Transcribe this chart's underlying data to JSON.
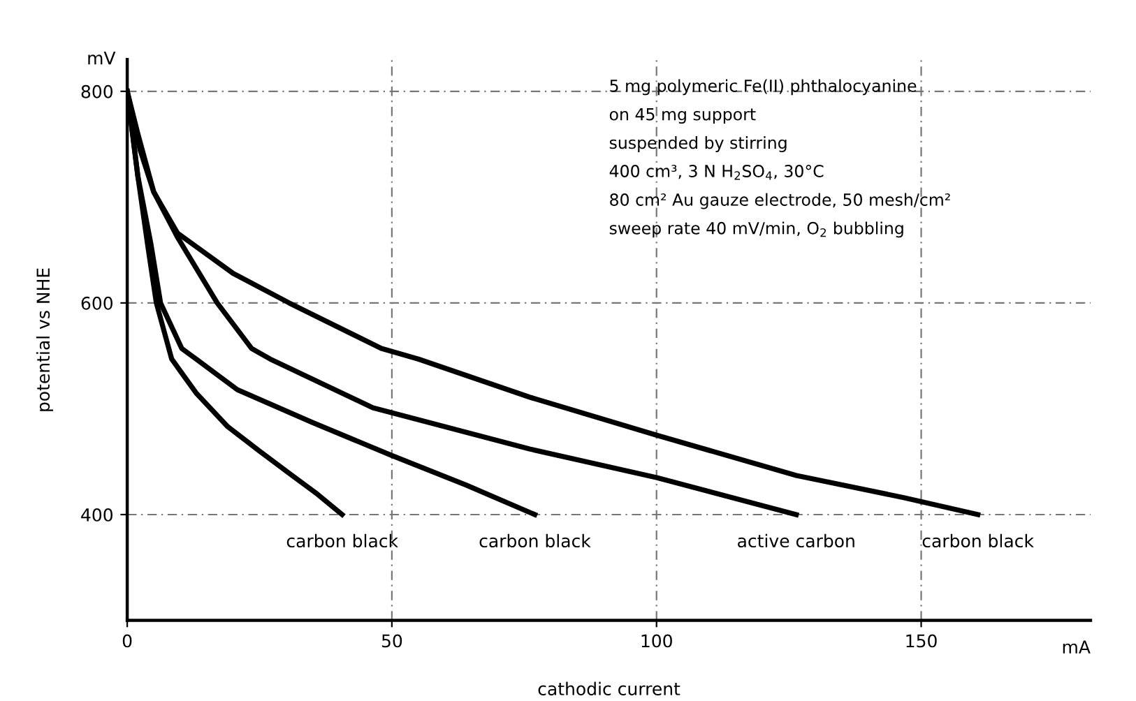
{
  "chart_data": {
    "type": "line",
    "xlabel": "cathodic current",
    "ylabel": "potential vs NHE",
    "xlim": [
      0,
      182
    ],
    "ylim": [
      300,
      830
    ],
    "xticks": [
      0,
      50,
      100,
      150
    ],
    "yticks": [
      400,
      600,
      800
    ],
    "grid": true,
    "marker": "none",
    "line_style": "solid",
    "series": [
      {
        "name": "carbon black",
        "color": "#000000",
        "x": [
          0,
          2,
          4,
          5.5,
          8.4,
          13,
          19,
          25,
          30.6,
          36,
          40.6
        ],
        "values": [
          800,
          720,
          650,
          600,
          547,
          515,
          483,
          460,
          439,
          419,
          400
        ]
      },
      {
        "name": "carbon black",
        "color": "#000000",
        "x": [
          0,
          2,
          4.5,
          6.3,
          10.3,
          13,
          20.8,
          35,
          49.9,
          64,
          77
        ],
        "values": [
          800,
          720,
          655,
          600,
          557,
          547,
          518,
          487,
          456,
          428,
          400
        ]
      },
      {
        "name": "active carbon",
        "color": "#000000",
        "x": [
          0,
          2,
          5,
          9.5,
          17,
          23.5,
          27,
          46.4,
          76,
          100,
          126.4
        ],
        "values": [
          800,
          760,
          705,
          662,
          600,
          557,
          547,
          501,
          462,
          435,
          400
        ]
      },
      {
        "name": "carbon black",
        "color": "#000000",
        "x": [
          0,
          2.4,
          5,
          9.5,
          20,
          30.6,
          48,
          55,
          76,
          100,
          126.4,
          146.7,
          160.7
        ],
        "values": [
          800,
          745,
          705,
          666,
          628,
          600,
          557,
          547,
          511,
          475,
          437,
          416,
          400
        ]
      }
    ],
    "annotations": [
      "5 mg polymeric Fe(II) phthalocyanine\non 45 mg support\nsuspended by stirring\n400 cm³, 3 N H$_{2}$SO$_{4}$, 30°C\n80 cm² Au gauze electrode, 50 mesh/cm²\nsweep rate 40 mV/min, O$_{2}$ bubbling",
      "mV",
      "mA"
    ]
  }
}
